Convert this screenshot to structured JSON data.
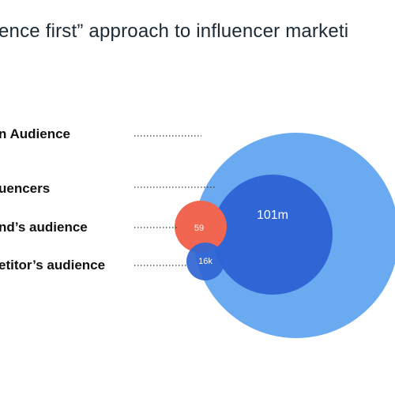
{
  "title": "ence first” approach to influencer marketi",
  "legend": {
    "items": [
      {
        "label": "n Audience"
      },
      {
        "label": "uencers"
      },
      {
        "label": "nd’s audience"
      },
      {
        "label": "etitor’s audience"
      }
    ]
  },
  "circles": [
    {
      "label": "",
      "color": "#6aaaf0"
    },
    {
      "label": "101m",
      "color": "#2f65d4"
    },
    {
      "label": "59",
      "color": "#f06650"
    },
    {
      "label": "16k",
      "color": "#2f65d4"
    }
  ]
}
